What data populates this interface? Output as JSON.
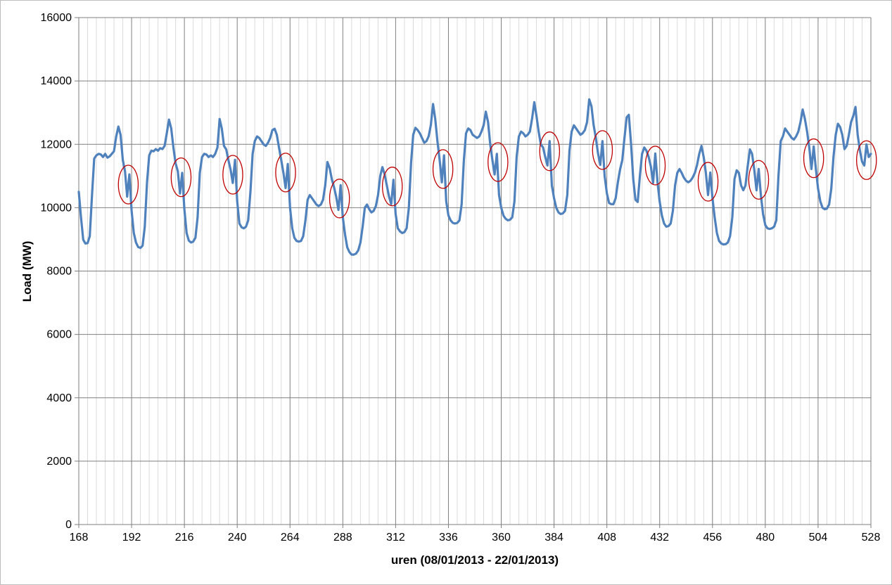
{
  "style": {
    "background": "#ffffff",
    "frame_border": "#bdbdbd",
    "minor_grid_color": "#dadada",
    "major_grid_color": "#7f7f7f",
    "axis_color": "#7f7f7f",
    "label_color": "#000000",
    "series_color": "#4f81bd",
    "annotation_color": "#c00000"
  },
  "chart_data": {
    "type": "line",
    "title": "",
    "xlabel": "uren (08/01/2013 - 22/01/2013)",
    "ylabel": "Load (MW)",
    "xlim": [
      168,
      528
    ],
    "ylim": [
      0,
      16000
    ],
    "x_ticks": [
      168,
      192,
      216,
      240,
      264,
      288,
      312,
      336,
      360,
      384,
      408,
      432,
      456,
      480,
      504,
      528
    ],
    "x_minor_step": 4,
    "y_ticks": [
      0,
      2000,
      4000,
      6000,
      8000,
      10000,
      12000,
      14000,
      16000
    ],
    "grid": "major-horizontal, major+minor-vertical",
    "legend": "none",
    "series": [
      {
        "name": "Load (MW)",
        "color": "#4f81bd",
        "x_start": 168,
        "x_step": 1,
        "values": [
          10500,
          9700,
          8990,
          8870,
          8880,
          9100,
          10400,
          11550,
          11650,
          11700,
          11680,
          11600,
          11700,
          11580,
          11620,
          11700,
          11780,
          12250,
          12560,
          12300,
          11500,
          11150,
          10350,
          11050,
          9900,
          9200,
          8900,
          8760,
          8730,
          8800,
          9400,
          10800,
          11650,
          11800,
          11780,
          11850,
          11800,
          11880,
          11850,
          11950,
          12350,
          12780,
          12500,
          11900,
          11400,
          11150,
          10450,
          11100,
          9950,
          9200,
          8960,
          8900,
          8930,
          9050,
          9700,
          11100,
          11600,
          11700,
          11680,
          11600,
          11650,
          11600,
          11700,
          11900,
          12800,
          12500,
          11950,
          11840,
          11500,
          11200,
          10780,
          11510,
          10200,
          9500,
          9380,
          9350,
          9400,
          9600,
          10500,
          11700,
          12100,
          12250,
          12200,
          12100,
          12000,
          11950,
          12050,
          12200,
          12450,
          12490,
          12300,
          11900,
          11500,
          11100,
          10620,
          11380,
          10000,
          9350,
          9050,
          8950,
          8930,
          8950,
          9100,
          9600,
          10250,
          10400,
          10300,
          10200,
          10100,
          10050,
          10100,
          10250,
          10700,
          11440,
          11250,
          10900,
          10650,
          10350,
          9930,
          10710,
          9700,
          9150,
          8750,
          8600,
          8520,
          8520,
          8550,
          8650,
          8900,
          9400,
          10000,
          10100,
          9950,
          9850,
          9900,
          10050,
          10400,
          11000,
          11280,
          11050,
          10700,
          10350,
          10110,
          10880,
          9800,
          9350,
          9250,
          9200,
          9230,
          9350,
          10000,
          11400,
          12300,
          12520,
          12450,
          12350,
          12200,
          12050,
          12100,
          12250,
          12600,
          13270,
          12800,
          12100,
          11500,
          10800,
          11650,
          10200,
          9750,
          9600,
          9520,
          9500,
          9520,
          9600,
          10100,
          11500,
          12350,
          12500,
          12450,
          12300,
          12250,
          12200,
          12250,
          12400,
          12600,
          13030,
          12700,
          12000,
          11500,
          11050,
          11700,
          10400,
          10000,
          9750,
          9650,
          9600,
          9620,
          9700,
          10200,
          11600,
          12250,
          12400,
          12350,
          12250,
          12300,
          12400,
          12800,
          13330,
          12900,
          12400,
          12000,
          11900,
          11600,
          11330,
          12100,
          10700,
          10300,
          10000,
          9850,
          9800,
          9820,
          9900,
          10400,
          11800,
          12400,
          12600,
          12500,
          12400,
          12300,
          12350,
          12450,
          12700,
          13420,
          13200,
          12600,
          12200,
          11700,
          11350,
          12100,
          11000,
          10450,
          10150,
          10110,
          10110,
          10300,
          10800,
          11200,
          11500,
          12200,
          12850,
          12930,
          12000,
          10900,
          10250,
          10180,
          11000,
          11700,
          11900,
          11800,
          11600,
          11300,
          10780,
          11710,
          10820,
          10200,
          9750,
          9500,
          9400,
          9420,
          9500,
          9900,
          10700,
          11100,
          11220,
          11100,
          10950,
          10850,
          10800,
          10850,
          10950,
          11100,
          11350,
          11700,
          11950,
          11600,
          11100,
          10400,
          11110,
          10300,
          9700,
          9200,
          8950,
          8870,
          8840,
          8850,
          8900,
          9100,
          9700,
          10900,
          11180,
          11100,
          10700,
          10550,
          10700,
          11300,
          11840,
          11700,
          11200,
          10550,
          11220,
          10400,
          9800,
          9450,
          9350,
          9330,
          9350,
          9400,
          9600,
          11000,
          12100,
          12250,
          12500,
          12400,
          12300,
          12200,
          12150,
          12250,
          12400,
          12700,
          13100,
          12800,
          12400,
          11900,
          11220,
          11930,
          11220,
          10600,
          10200,
          10000,
          9950,
          9970,
          10100,
          10600,
          11600,
          12300,
          12650,
          12550,
          12300,
          11850,
          11950,
          12300,
          12700,
          12900,
          13180,
          12300,
          11800,
          11450,
          11330,
          12000,
          11600,
          11700
        ]
      }
    ],
    "annotations": {
      "shape": "ellipse",
      "meaning": "circled daily late-evening dip/spike in load",
      "color": "#c00000",
      "rx_hours": 4.5,
      "ry_mw": 610,
      "centers": [
        {
          "hour": 190.5,
          "value": 10730
        },
        {
          "hour": 214.5,
          "value": 10960
        },
        {
          "hour": 238.0,
          "value": 11040
        },
        {
          "hour": 262.0,
          "value": 11110
        },
        {
          "hour": 286.5,
          "value": 10290
        },
        {
          "hour": 310.5,
          "value": 10670
        },
        {
          "hour": 333.5,
          "value": 11220
        },
        {
          "hour": 358.5,
          "value": 11440
        },
        {
          "hour": 382.0,
          "value": 11780
        },
        {
          "hour": 406.0,
          "value": 11820
        },
        {
          "hour": 430.0,
          "value": 11330
        },
        {
          "hour": 454.0,
          "value": 10820
        },
        {
          "hour": 477.0,
          "value": 10880
        },
        {
          "hour": 502.0,
          "value": 11560
        },
        {
          "hour": 526.0,
          "value": 11500
        }
      ]
    }
  }
}
